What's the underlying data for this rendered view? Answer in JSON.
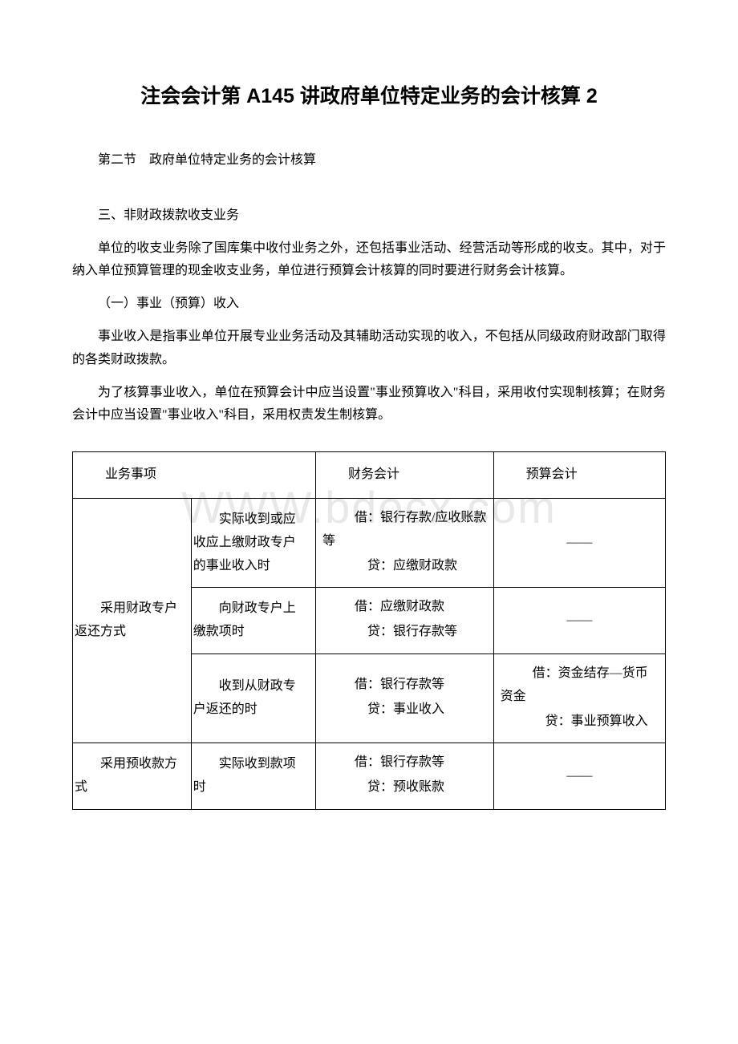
{
  "title": "注会会计第 A145 讲政府单位特定业务的会计核算 2",
  "section_heading": "第二节　政府单位特定业务的会计核算",
  "sub_heading_1": "三、非财政拨款收支业务",
  "paragraph_1": "单位的收支业务除了国库集中收付业务之外，还包括事业活动、经营活动等形成的收支。其中，对于纳入单位预算管理的现金收支业务，单位进行预算会计核算的同时要进行财务会计核算。",
  "sub_heading_2": "（一）事业（预算）收入",
  "paragraph_2": "事业收入是指事业单位开展专业业务活动及其辅助活动实现的收入，不包括从同级政府财政部门取得的各类财政拨款。",
  "paragraph_3": "为了核算事业收入，单位在预算会计中应当设置\"事业预算收入\"科目，采用收付实现制核算；在财务会计中应当设置\"事业收入\"科目，采用权责发生制核算。",
  "watermark": "WWW.bdocx.com",
  "table": {
    "headers": {
      "col1": "业务事项",
      "col3": "财务会计",
      "col4": "预算会计"
    },
    "rows": [
      {
        "col1": "采用财政专户返还方式",
        "col1_rowspan": 3,
        "col2": "实际收到或应收应上缴财政专户的事业收入时",
        "col3_debit": "借：银行存款/应收账款等",
        "col3_credit": "贷：应缴财政款",
        "col4_dash": true
      },
      {
        "col2": "向财政专户上缴款项时",
        "col3_debit": "借：应缴财政款",
        "col3_credit": "贷：银行存款等",
        "col4_dash": true
      },
      {
        "col2": "收到从财政专户返还的时",
        "col3_debit": "借：银行存款等",
        "col3_credit": "贷：事业收入",
        "col4_debit": "借：资金结存—货币资金",
        "col4_credit": "贷：事业预算收入"
      },
      {
        "col1": "采用预收款方式",
        "col2": "实际收到款项时",
        "col3_debit": "借：银行存款等",
        "col3_credit": "贷：预收账款",
        "col4_dash": true
      }
    ],
    "dash": "——"
  }
}
